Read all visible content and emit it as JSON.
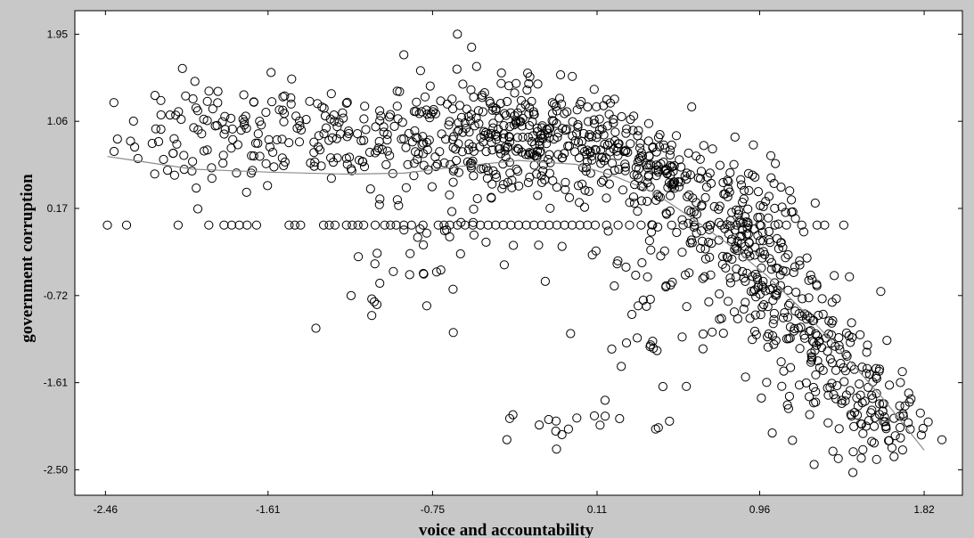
{
  "chart_data": {
    "type": "scatter",
    "xlabel": "voice  and  accountability",
    "ylabel": "government  corruption",
    "xlim": [
      -2.62,
      2.02
    ],
    "ylim": [
      -2.76,
      2.19
    ],
    "x_ticks": [
      "-2.46",
      "-1.61",
      "-0.75",
      "0.11",
      "0.96",
      "1.82"
    ],
    "y_ticks": [
      "1.95",
      "1.06",
      "0.17",
      "-0.72",
      "-1.61",
      "-2.50"
    ],
    "grid": false,
    "legend": "none",
    "marker": "open-circle",
    "colors": {
      "panel_bg": "#c8c8c8",
      "plot_bg": "#ffffff",
      "marker": "#000000",
      "fit_line": "#8c8c8c"
    },
    "fit_line": {
      "x": [
        -2.45,
        -2.0,
        -1.6,
        -1.2,
        -0.9,
        -0.6,
        -0.3,
        0.0,
        0.2,
        0.4,
        0.6,
        0.8,
        1.0,
        1.2,
        1.4,
        1.6,
        1.82
      ],
      "y": [
        0.7,
        0.57,
        0.54,
        0.52,
        0.53,
        0.6,
        0.66,
        0.62,
        0.5,
        0.34,
        0.08,
        -0.2,
        -0.52,
        -0.9,
        -1.32,
        -1.76,
        -2.3
      ]
    },
    "point_clouds": [
      {
        "cx": -1.9,
        "cy": 0.9,
        "sx": 0.25,
        "sy": 0.28,
        "n": 90
      },
      {
        "cx": -1.3,
        "cy": 0.95,
        "sx": 0.25,
        "sy": 0.28,
        "n": 90
      },
      {
        "cx": -0.8,
        "cy": 0.9,
        "sx": 0.22,
        "sy": 0.3,
        "n": 70
      },
      {
        "cx": -0.45,
        "cy": 0.9,
        "sx": 0.22,
        "sy": 0.28,
        "n": 130
      },
      {
        "cx": -0.15,
        "cy": 0.85,
        "sx": 0.22,
        "sy": 0.28,
        "n": 140
      },
      {
        "cx": 0.2,
        "cy": 0.7,
        "sx": 0.2,
        "sy": 0.25,
        "n": 100
      },
      {
        "cx": 0.45,
        "cy": 0.55,
        "sx": 0.12,
        "sy": 0.2,
        "n": 60
      },
      {
        "cx": 0.6,
        "cy": 0.15,
        "sx": 0.2,
        "sy": 0.35,
        "n": 70
      },
      {
        "cx": 0.85,
        "cy": 0.0,
        "sx": 0.12,
        "sy": 0.35,
        "n": 90
      },
      {
        "cx": 1.0,
        "cy": -0.6,
        "sx": 0.15,
        "sy": 0.4,
        "n": 90
      },
      {
        "cx": 1.2,
        "cy": -1.1,
        "sx": 0.15,
        "sy": 0.35,
        "n": 80
      },
      {
        "cx": 1.45,
        "cy": -1.6,
        "sx": 0.15,
        "sy": 0.3,
        "n": 70
      },
      {
        "cx": 1.6,
        "cy": -2.0,
        "sx": 0.12,
        "sy": 0.18,
        "n": 60
      },
      {
        "cx": 0.45,
        "cy": -1.0,
        "sx": 0.2,
        "sy": 0.45,
        "n": 40
      },
      {
        "cx": -1.0,
        "cy": -0.75,
        "sx": 0.18,
        "sy": 0.25,
        "n": 14
      },
      {
        "cx": -0.6,
        "cy": -0.25,
        "sx": 0.3,
        "sy": 0.2,
        "n": 25
      },
      {
        "cx": -0.1,
        "cy": -2.05,
        "sx": 0.22,
        "sy": 0.1,
        "n": 16
      }
    ],
    "row_0_17": {
      "y": 0.0,
      "x": [
        -2.45,
        -2.35,
        -2.08,
        -1.92,
        -1.84,
        -1.8,
        -1.76,
        -1.72,
        -1.67,
        -1.5,
        -1.47,
        -1.44,
        -1.32,
        -1.29,
        -1.26,
        -1.2,
        -1.17,
        -1.14,
        -1.11,
        -1.05,
        -1.0,
        -0.97,
        -0.94,
        -0.9,
        -0.86,
        -0.8,
        -0.72,
        -0.69,
        -0.66,
        -0.62,
        -0.58,
        -0.54,
        -0.5,
        -0.46,
        -0.42,
        -0.38,
        -0.34,
        -0.3,
        -0.26,
        -0.22,
        -0.18,
        -0.14,
        -0.1,
        -0.06,
        -0.02,
        0.02,
        0.06,
        0.1,
        0.16,
        0.22,
        0.28,
        0.34,
        0.4,
        0.5,
        0.56,
        0.62,
        0.7,
        0.76,
        0.84,
        0.9,
        0.96,
        1.04,
        1.1,
        1.18,
        1.26,
        1.3,
        1.4
      ]
    }
  }
}
